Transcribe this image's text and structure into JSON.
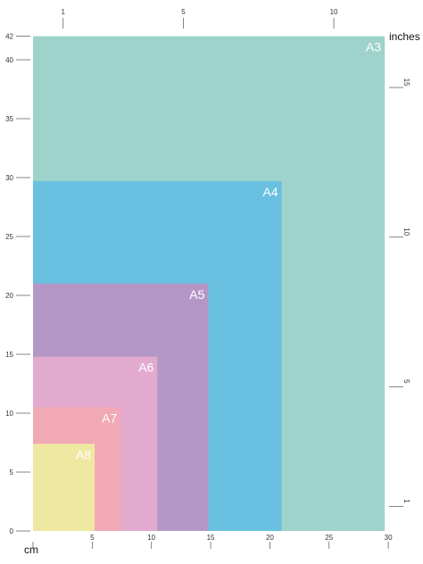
{
  "units": {
    "cm_label": "cm",
    "inches_label": "inches"
  },
  "cm_axis": {
    "x_ticks": [
      0,
      5,
      10,
      15,
      20,
      25,
      30
    ],
    "y_ticks": [
      0,
      5,
      10,
      15,
      20,
      25,
      30,
      35,
      40,
      42
    ]
  },
  "inch_axis": {
    "top_ticks": [
      1,
      5,
      10
    ],
    "right_ticks": [
      1,
      5,
      10,
      15
    ]
  },
  "sheets": [
    {
      "name": "A3",
      "width_cm": 29.7,
      "height_cm": 42.0,
      "color": "#9DD3CA"
    },
    {
      "name": "A4",
      "width_cm": 21.0,
      "height_cm": 29.7,
      "color": "#6AC0E0"
    },
    {
      "name": "A5",
      "width_cm": 14.8,
      "height_cm": 21.0,
      "color": "#B497C6"
    },
    {
      "name": "A6",
      "width_cm": 10.5,
      "height_cm": 14.8,
      "color": "#E2AACF"
    },
    {
      "name": "A7",
      "width_cm": 7.4,
      "height_cm": 10.5,
      "color": "#F1A9B5"
    },
    {
      "name": "A8",
      "width_cm": 5.2,
      "height_cm": 7.4,
      "color": "#EFE8A2"
    }
  ]
}
